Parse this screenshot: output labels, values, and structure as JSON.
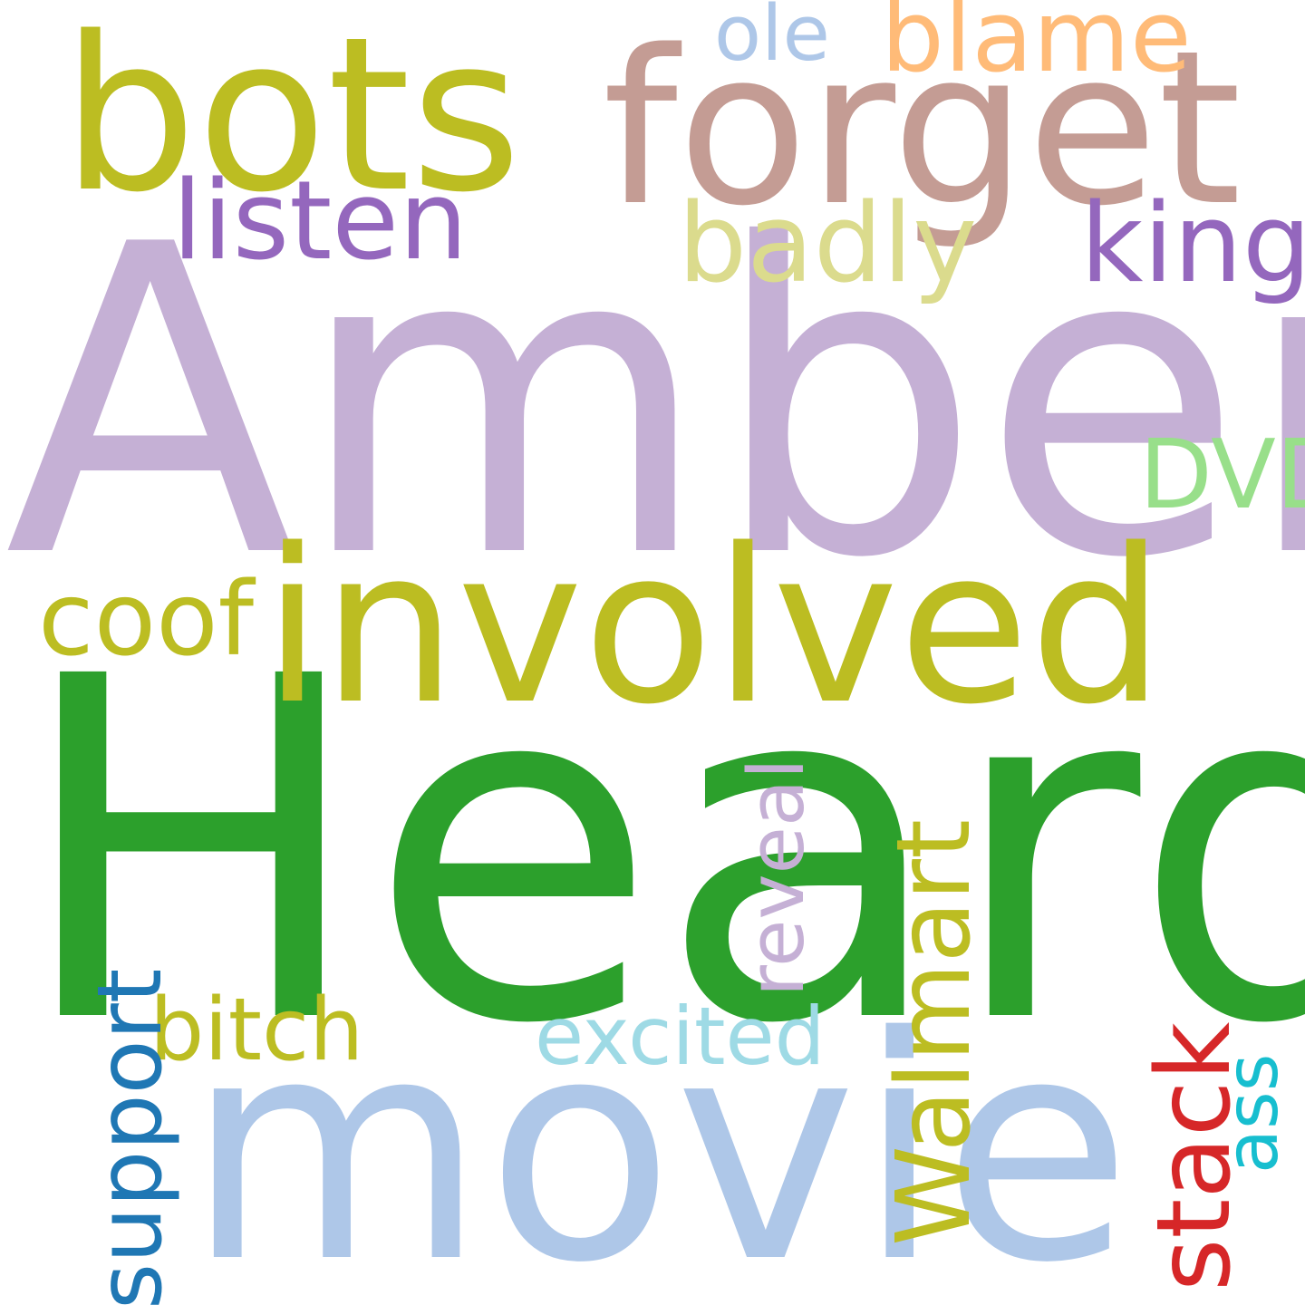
{
  "cloud": {
    "words": [
      {
        "id": "amber",
        "text": "Amber",
        "color": "#c5b0d5",
        "orientation": "horizontal"
      },
      {
        "id": "heard",
        "text": "Heard",
        "color": "#2ca02c",
        "orientation": "horizontal"
      },
      {
        "id": "movie",
        "text": "movie",
        "color": "#aec7e8",
        "orientation": "horizontal"
      },
      {
        "id": "involved",
        "text": "involved",
        "color": "#bcbd22",
        "orientation": "horizontal"
      },
      {
        "id": "forget",
        "text": "forget",
        "color": "#c49c94",
        "orientation": "horizontal"
      },
      {
        "id": "bots",
        "text": "bots",
        "color": "#bcbd22",
        "orientation": "horizontal"
      },
      {
        "id": "listen",
        "text": "listen",
        "color": "#9467bd",
        "orientation": "horizontal"
      },
      {
        "id": "badly",
        "text": "badly",
        "color": "#dbdb8d",
        "orientation": "horizontal"
      },
      {
        "id": "king",
        "text": "king",
        "color": "#9467bd",
        "orientation": "horizontal"
      },
      {
        "id": "blame",
        "text": "blame",
        "color": "#ffbb78",
        "orientation": "horizontal"
      },
      {
        "id": "ole",
        "text": "ole",
        "color": "#aec7e8",
        "orientation": "horizontal"
      },
      {
        "id": "dvd",
        "text": "DVD",
        "color": "#98df8a",
        "orientation": "horizontal"
      },
      {
        "id": "coof",
        "text": "coof",
        "color": "#bcbd22",
        "orientation": "horizontal"
      },
      {
        "id": "bitch",
        "text": "bitch",
        "color": "#bcbd22",
        "orientation": "horizontal"
      },
      {
        "id": "excited",
        "text": "excited",
        "color": "#9edae5",
        "orientation": "horizontal"
      },
      {
        "id": "support",
        "text": "support",
        "color": "#1f77b4",
        "orientation": "vertical"
      },
      {
        "id": "reveal",
        "text": "reveal",
        "color": "#c5b0d5",
        "orientation": "vertical"
      },
      {
        "id": "walmart",
        "text": "Walmart",
        "color": "#bcbd22",
        "orientation": "vertical"
      },
      {
        "id": "stack",
        "text": "stack",
        "color": "#d62728",
        "orientation": "vertical"
      },
      {
        "id": "ass",
        "text": "ass",
        "color": "#17becf",
        "orientation": "vertical"
      }
    ]
  }
}
